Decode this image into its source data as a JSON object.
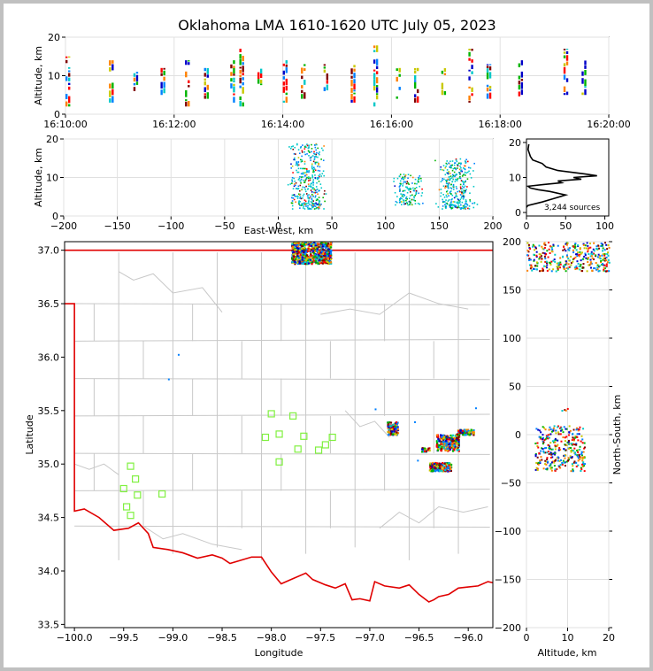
{
  "title": "Oklahoma LMA 1610-1620 UTC July 05, 2023",
  "colors": {
    "state_border": "#e00000",
    "county_lines": "#c8c8c8",
    "stations": "#80f040",
    "source_palette": [
      "#0000c8",
      "#0080ff",
      "#00c8c8",
      "#00b400",
      "#c8c800",
      "#ff8000",
      "#ff0000",
      "#800000"
    ]
  },
  "chart_data": [
    {
      "id": "altitude_time",
      "type": "scatter",
      "xlabel": "",
      "ylabel": "Altitude, km",
      "x_ticks": [
        "16:10:00",
        "16:12:00",
        "16:14:00",
        "16:16:00",
        "16:18:00",
        "16:20:00"
      ],
      "x_range": [
        "16:10:00",
        "16:20:00"
      ],
      "y_ticks": [
        0,
        10,
        20
      ],
      "y_range": [
        0,
        20
      ],
      "grid": true,
      "source_bursts": [
        {
          "time": "16:10:00",
          "alt_min": 2,
          "alt_max": 15
        },
        {
          "time": "16:10:48",
          "alt_min": 3,
          "alt_max": 14
        },
        {
          "time": "16:11:15",
          "alt_min": 6,
          "alt_max": 11
        },
        {
          "time": "16:11:45",
          "alt_min": 4,
          "alt_max": 12
        },
        {
          "time": "16:12:12",
          "alt_min": 2,
          "alt_max": 14
        },
        {
          "time": "16:12:33",
          "alt_min": 4,
          "alt_max": 12
        },
        {
          "time": "16:13:02",
          "alt_min": 3,
          "alt_max": 14
        },
        {
          "time": "16:13:12",
          "alt_min": 2,
          "alt_max": 17
        },
        {
          "time": "16:13:32",
          "alt_min": 7,
          "alt_max": 12
        },
        {
          "time": "16:14:00",
          "alt_min": 3,
          "alt_max": 14
        },
        {
          "time": "16:14:20",
          "alt_min": 4,
          "alt_max": 13
        },
        {
          "time": "16:14:45",
          "alt_min": 3,
          "alt_max": 13
        },
        {
          "time": "16:15:15",
          "alt_min": 3,
          "alt_max": 13
        },
        {
          "time": "16:15:40",
          "alt_min": 2,
          "alt_max": 18
        },
        {
          "time": "16:16:05",
          "alt_min": 4,
          "alt_max": 12
        },
        {
          "time": "16:16:25",
          "alt_min": 3,
          "alt_max": 12
        },
        {
          "time": "16:16:55",
          "alt_min": 5,
          "alt_max": 12
        },
        {
          "time": "16:17:25",
          "alt_min": 3,
          "alt_max": 17
        },
        {
          "time": "16:17:45",
          "alt_min": 4,
          "alt_max": 13
        },
        {
          "time": "16:18:20",
          "alt_min": 2,
          "alt_max": 14
        },
        {
          "time": "16:19:10",
          "alt_min": 5,
          "alt_max": 17
        },
        {
          "time": "16:19:30",
          "alt_min": 5,
          "alt_max": 14
        }
      ]
    },
    {
      "id": "altitude_east_west",
      "type": "scatter",
      "xlabel": "East-West, km",
      "ylabel": "Altitude, km",
      "x_ticks": [
        -200,
        -150,
        -100,
        -50,
        0,
        50,
        100,
        150,
        200
      ],
      "x_range": [
        -200,
        200
      ],
      "y_ticks": [
        0,
        10,
        20
      ],
      "y_range": [
        0,
        20
      ],
      "grid": true,
      "clusters": [
        {
          "x_min": 8,
          "x_max": 45,
          "alt_min": 2,
          "alt_max": 19
        },
        {
          "x_min": 105,
          "x_max": 135,
          "alt_min": 3,
          "alt_max": 11
        },
        {
          "x_min": 145,
          "x_max": 185,
          "alt_min": 2,
          "alt_max": 15
        }
      ]
    },
    {
      "id": "altitude_histogram",
      "type": "line",
      "xlabel": "",
      "ylabel": "",
      "x_ticks": [
        0,
        50,
        100
      ],
      "x_range": [
        0,
        105
      ],
      "y_ticks": [
        0,
        10,
        20
      ],
      "y_range": [
        -1,
        21
      ],
      "annotation": "3,244 sources",
      "x": [
        0,
        2,
        20,
        35,
        50,
        30,
        15,
        5,
        2,
        22,
        45,
        40,
        70,
        60,
        90,
        75,
        40,
        25,
        20,
        8,
        5,
        2,
        3
      ],
      "y": [
        1.5,
        2,
        3,
        4,
        5,
        6,
        6.5,
        7,
        7.5,
        8,
        8.5,
        9,
        9.5,
        10,
        10.5,
        11,
        12,
        13,
        14,
        15,
        16,
        18,
        19.5
      ]
    },
    {
      "id": "plan_view",
      "type": "map",
      "xlabel": "Longitude",
      "ylabel": "Latitude",
      "x_ticks": [
        -100.0,
        -99.5,
        -99.0,
        -98.5,
        -98.0,
        -97.5,
        -97.0,
        -96.5,
        -96.0
      ],
      "x_range": [
        -100.1,
        -95.75
      ],
      "y_ticks": [
        33.5,
        34.0,
        34.5,
        35.0,
        35.5,
        36.0,
        36.5,
        37.0
      ],
      "y_range": [
        33.47,
        37.08
      ],
      "stations": [
        {
          "lon": -98.0,
          "lat": 35.47
        },
        {
          "lon": -97.78,
          "lat": 35.45
        },
        {
          "lon": -98.06,
          "lat": 35.25
        },
        {
          "lon": -97.92,
          "lat": 35.28
        },
        {
          "lon": -97.67,
          "lat": 35.26
        },
        {
          "lon": -97.73,
          "lat": 35.14
        },
        {
          "lon": -97.92,
          "lat": 35.02
        },
        {
          "lon": -97.52,
          "lat": 35.13
        },
        {
          "lon": -97.45,
          "lat": 35.18
        },
        {
          "lon": -97.38,
          "lat": 35.25
        },
        {
          "lon": -99.43,
          "lat": 34.98
        },
        {
          "lon": -99.38,
          "lat": 34.86
        },
        {
          "lon": -99.5,
          "lat": 34.77
        },
        {
          "lon": -99.36,
          "lat": 34.71
        },
        {
          "lon": -99.47,
          "lat": 34.6
        },
        {
          "lon": -99.43,
          "lat": 34.52
        },
        {
          "lon": -99.11,
          "lat": 34.72
        }
      ],
      "source_clusters": [
        {
          "lon_min": -97.8,
          "lon_max": -97.4,
          "lat_min": 36.88,
          "lat_max": 37.08
        },
        {
          "lon_min": -96.83,
          "lon_max": -96.72,
          "lat_min": 35.28,
          "lat_max": 35.4
        },
        {
          "lon_min": -96.48,
          "lon_max": -96.4,
          "lat_min": 35.12,
          "lat_max": 35.16
        },
        {
          "lon_min": -96.33,
          "lon_max": -96.1,
          "lat_min": 35.13,
          "lat_max": 35.28
        },
        {
          "lon_min": -96.13,
          "lon_max": -95.95,
          "lat_min": 35.28,
          "lat_max": 35.33
        },
        {
          "lon_min": -96.4,
          "lon_max": -96.18,
          "lat_min": 34.94,
          "lat_max": 35.02
        }
      ]
    },
    {
      "id": "altitude_north_south",
      "type": "scatter",
      "xlabel": "Altitude, km",
      "ylabel": "North-South, km",
      "x_ticks": [
        0,
        10,
        20
      ],
      "x_range": [
        0,
        20
      ],
      "y_ticks": [
        -200,
        -150,
        -100,
        -50,
        0,
        50,
        100,
        150,
        200
      ],
      "y_range": [
        -200,
        200
      ],
      "grid": true,
      "clusters": [
        {
          "alt_min": 0,
          "alt_max": 20,
          "y_min": 170,
          "y_max": 200
        },
        {
          "alt_min": 2,
          "alt_max": 14,
          "y_min": -37,
          "y_max": 10
        },
        {
          "alt_min": 8,
          "alt_max": 10,
          "y_min": 24,
          "y_max": 28
        }
      ]
    }
  ]
}
